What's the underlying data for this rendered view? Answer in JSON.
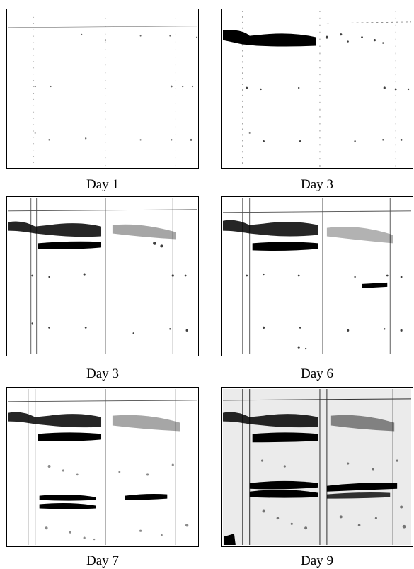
{
  "figure": {
    "panels": [
      {
        "caption": "Day 1"
      },
      {
        "caption": "Day 3"
      },
      {
        "caption": "Day 3"
      },
      {
        "caption": "Day 6"
      },
      {
        "caption": "Day 7"
      },
      {
        "caption": "Day 9"
      }
    ]
  }
}
